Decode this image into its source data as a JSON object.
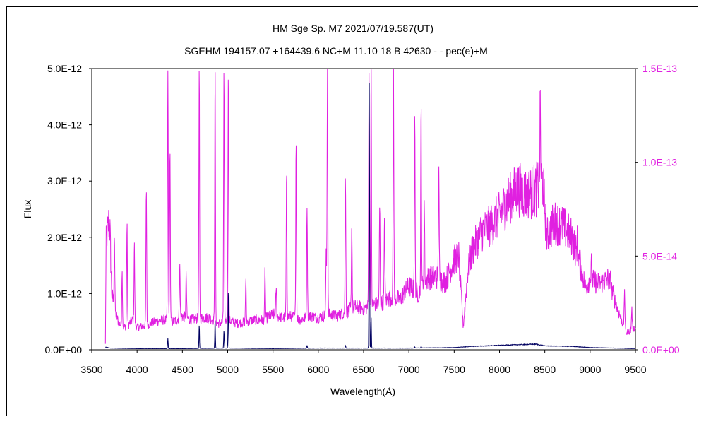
{
  "chart_data": {
    "type": "line",
    "title": "HM Sge    Sp. M7    2021/07/19.587(UT)",
    "subtitle": "SGEHM 194157.07 +164439.6 NC+M 11.10 18 B 42630 - - pec(e)+M",
    "xlabel": "Wavelength(Å)",
    "ylabel": "Flux",
    "xlim": [
      3500,
      9500
    ],
    "ylim_left": [
      0,
      5e-12
    ],
    "ylim_right": [
      0,
      1.5e-13
    ],
    "x_ticks": [
      "3500",
      "4000",
      "4500",
      "5000",
      "5500",
      "6000",
      "6500",
      "7000",
      "7500",
      "8000",
      "8500",
      "9000",
      "9500"
    ],
    "y_ticks_left": [
      "0.0E+00",
      "1.0E-12",
      "2.0E-12",
      "3.0E-12",
      "4.0E-12",
      "5.0E-12"
    ],
    "y_ticks_right": [
      "0.0E+00",
      "5.0E-14",
      "1.0E-13",
      "1.5E-13"
    ],
    "grid": false,
    "series": [
      {
        "axis": "right",
        "color": "#e020e0",
        "continuum": [
          [
            3650,
            3e-15
          ],
          [
            3660,
            6.2e-14
          ],
          [
            3700,
            6.5e-14
          ],
          [
            3720,
            3e-14
          ],
          [
            3760,
            2e-14
          ],
          [
            3800,
            1.4e-14
          ],
          [
            3850,
            1.2e-14
          ],
          [
            3900,
            1.3e-14
          ],
          [
            3950,
            1.6e-14
          ],
          [
            4000,
            1.2e-14
          ],
          [
            4100,
            1.3e-14
          ],
          [
            4200,
            1.5e-14
          ],
          [
            4300,
            1.6e-14
          ],
          [
            4400,
            1.5e-14
          ],
          [
            4500,
            1.8e-14
          ],
          [
            4600,
            1.6e-14
          ],
          [
            4700,
            1.7e-14
          ],
          [
            4800,
            1.7e-14
          ],
          [
            4900,
            1.4e-14
          ],
          [
            5000,
            1.6e-14
          ],
          [
            5100,
            1.4e-14
          ],
          [
            5200,
            1.5e-14
          ],
          [
            5300,
            1.6e-14
          ],
          [
            5400,
            1.6e-14
          ],
          [
            5500,
            1.9e-14
          ],
          [
            5600,
            1.7e-14
          ],
          [
            5700,
            1.8e-14
          ],
          [
            5800,
            1.6e-14
          ],
          [
            5900,
            1.8e-14
          ],
          [
            6000,
            1.7e-14
          ],
          [
            6100,
            1.9e-14
          ],
          [
            6200,
            1.8e-14
          ],
          [
            6300,
            2e-14
          ],
          [
            6400,
            2.3e-14
          ],
          [
            6500,
            2.2e-14
          ],
          [
            6600,
            2.4e-14
          ],
          [
            6700,
            2.5e-14
          ],
          [
            6800,
            2.8e-14
          ],
          [
            6900,
            2.7e-14
          ],
          [
            7000,
            3.4e-14
          ],
          [
            7100,
            3e-14
          ],
          [
            7200,
            3.8e-14
          ],
          [
            7300,
            3.9e-14
          ],
          [
            7400,
            3.6e-14
          ],
          [
            7500,
            4.8e-14
          ],
          [
            7550,
            5e-14
          ],
          [
            7600,
            1.2e-14
          ],
          [
            7650,
            4.2e-14
          ],
          [
            7700,
            5.3e-14
          ],
          [
            7800,
            6.3e-14
          ],
          [
            7900,
            6.6e-14
          ],
          [
            8000,
            7.2e-14
          ],
          [
            8100,
            8e-14
          ],
          [
            8200,
            8.6e-14
          ],
          [
            8300,
            8.3e-14
          ],
          [
            8400,
            8.5e-14
          ],
          [
            8480,
            9e-14
          ],
          [
            8520,
            6e-14
          ],
          [
            8600,
            6.8e-14
          ],
          [
            8700,
            6.6e-14
          ],
          [
            8800,
            6e-14
          ],
          [
            8900,
            4.4e-14
          ],
          [
            8950,
            3.3e-14
          ],
          [
            9000,
            3.8e-14
          ],
          [
            9100,
            3.5e-14
          ],
          [
            9200,
            3.8e-14
          ],
          [
            9300,
            2.2e-14
          ],
          [
            9400,
            9e-15
          ],
          [
            9500,
            1.2e-14
          ]
        ],
        "lines": [
          [
            3686,
            6.8e-14
          ],
          [
            3750,
            6.2e-14
          ],
          [
            3835,
            4.2e-14
          ],
          [
            3889,
            6.9e-14
          ],
          [
            3970,
            5.7e-14
          ],
          [
            4102,
            8.7e-14
          ],
          [
            4340,
            1.5e-13
          ],
          [
            4363,
            1.1e-13
          ],
          [
            4471,
            4.8e-14
          ],
          [
            4542,
            4e-14
          ],
          [
            4686,
            1.5e-13
          ],
          [
            4861,
            1.5e-13
          ],
          [
            4959,
            1.5e-13
          ],
          [
            5007,
            1.5e-13
          ],
          [
            5200,
            3.7e-14
          ],
          [
            5412,
            4.3e-14
          ],
          [
            5535,
            3.3e-14
          ],
          [
            5650,
            9.6e-14
          ],
          [
            5755,
            1.12e-13
          ],
          [
            5876,
            7.8e-14
          ],
          [
            6087,
            5.2e-14
          ],
          [
            6101,
            1.5e-13
          ],
          [
            6300,
            9.3e-14
          ],
          [
            6370,
            6.8e-14
          ],
          [
            6560,
            1.5e-13
          ],
          [
            6583,
            1.5e-13
          ],
          [
            6678,
            7.8e-14
          ],
          [
            6731,
            7.1e-14
          ],
          [
            6830,
            1.5e-13
          ],
          [
            7065,
            1.23e-13
          ],
          [
            7135,
            1.3e-13
          ],
          [
            7170,
            8e-14
          ],
          [
            7330,
            9.9e-14
          ],
          [
            8450,
            1.34e-13
          ],
          [
            8860,
            5.9e-14
          ],
          [
            9015,
            4.6e-14
          ],
          [
            9229,
            3.9e-14
          ],
          [
            9380,
            3.2e-14
          ],
          [
            9460,
            2.2e-14
          ]
        ]
      },
      {
        "axis": "left",
        "color": "#000060",
        "continuum": [
          [
            3650,
            5e-14
          ],
          [
            3700,
            3e-14
          ],
          [
            4000,
            2e-14
          ],
          [
            4500,
            2e-14
          ],
          [
            5000,
            3e-14
          ],
          [
            5500,
            2e-14
          ],
          [
            6000,
            3e-14
          ],
          [
            6500,
            3e-14
          ],
          [
            7000,
            3e-14
          ],
          [
            7500,
            4e-14
          ],
          [
            7700,
            6e-14
          ],
          [
            8000,
            8e-14
          ],
          [
            8200,
            9e-14
          ],
          [
            8400,
            1e-13
          ],
          [
            8500,
            7e-14
          ],
          [
            8800,
            6e-14
          ],
          [
            9000,
            4e-14
          ],
          [
            9300,
            3e-14
          ],
          [
            9500,
            2e-14
          ]
        ],
        "lines": [
          [
            4340,
            2e-13
          ],
          [
            4686,
            4.5e-13
          ],
          [
            4861,
            5.5e-13
          ],
          [
            4959,
            3.5e-13
          ],
          [
            5007,
            1.07e-12
          ],
          [
            6563,
            4.75e-12
          ],
          [
            6583,
            6e-13
          ],
          [
            6300,
            8e-14
          ],
          [
            5876,
            8e-14
          ],
          [
            7065,
            5e-14
          ],
          [
            7135,
            6e-14
          ]
        ]
      }
    ]
  }
}
